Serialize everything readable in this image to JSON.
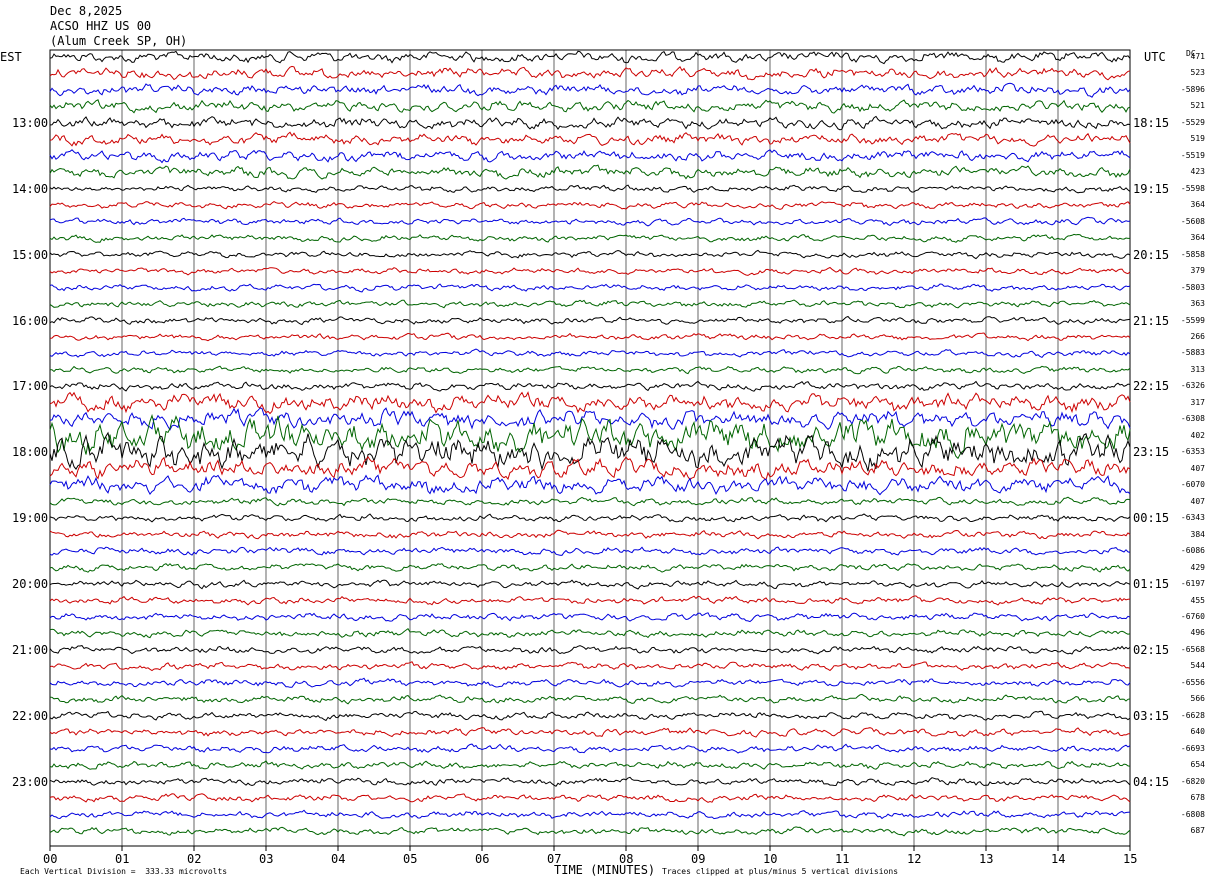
{
  "header": {
    "date": "Dec 8,2025",
    "station": "ACSO HHZ US 00",
    "location": "(Alum Creek SP, OH)"
  },
  "axes": {
    "left_zone": "EST",
    "right_zone": "UTC",
    "dc_label": "DC",
    "xlabel": "TIME (MINUTES)",
    "footer_left": "Each Vertical Division =  333.33 microvolts",
    "footer_right": "Traces clipped at plus/minus 5 vertical divisions"
  },
  "colors": {
    "trace_cycle": [
      "#000000",
      "#cc0000",
      "#0000dd",
      "#006400"
    ],
    "grid": "#000000"
  },
  "chart_data": {
    "type": "line",
    "title": "",
    "x_minutes": [
      0,
      15
    ],
    "x_ticks": [
      "00",
      "01",
      "02",
      "03",
      "04",
      "05",
      "06",
      "07",
      "08",
      "09",
      "10",
      "11",
      "12",
      "13",
      "14",
      "15"
    ],
    "est_hour_labels": [
      "13:00",
      "14:00",
      "15:00",
      "16:00",
      "17:00",
      "18:00",
      "19:00",
      "20:00",
      "21:00",
      "22:00",
      "23:00"
    ],
    "utc_hour_labels": [
      "18:15",
      "19:15",
      "20:15",
      "21:15",
      "22:15",
      "23:15",
      "00:15",
      "01:15",
      "02:15",
      "03:15",
      "04:15"
    ],
    "trace_count": 48,
    "dc_values": [
      "471",
      "523",
      "-5896",
      "521",
      "-5529",
      "519",
      "-5519",
      "423",
      "-5598",
      "364",
      "-5608",
      "364",
      "-5858",
      "379",
      "-5803",
      "363",
      "-5599",
      "266",
      "-5883",
      "313",
      "-6326",
      "317",
      "-6308",
      "402",
      "-6353",
      "407",
      "-6070",
      "407",
      "-6343",
      "384",
      "-6086",
      "429",
      "-6197",
      "455",
      "-6760",
      "496",
      "-6568",
      "544",
      "-6556",
      "566",
      "-6628",
      "640",
      "-6693",
      "654",
      "-6820",
      "678",
      "-6808",
      "687"
    ]
  }
}
